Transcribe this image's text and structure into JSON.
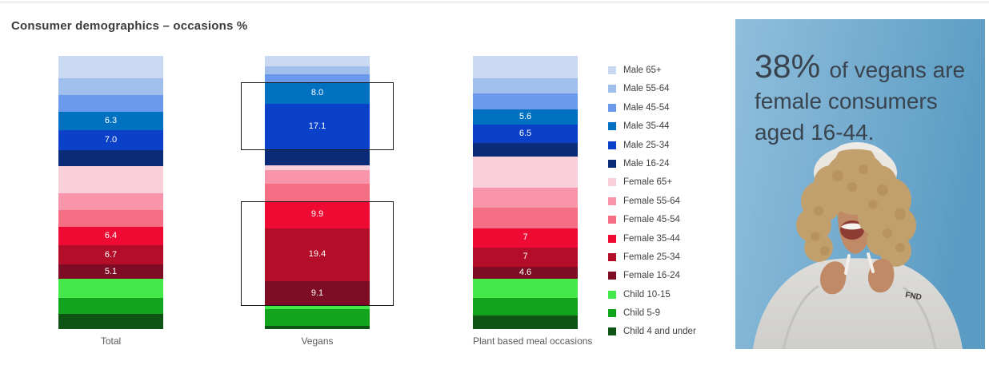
{
  "title": "Consumer demographics – occasions %",
  "chart_data": {
    "type": "bar",
    "stacked": true,
    "title": "Consumer demographics – occasions %",
    "unit": "%",
    "legend_position": "right",
    "grid": false,
    "categories": [
      "Male 65+",
      "Male 55-64",
      "Male 45-54",
      "Male 35-44",
      "Male 25-34",
      "Male 16-24",
      "Female 65+",
      "Female 55-64",
      "Female 45-54",
      "Female 35-44",
      "Female 25-34",
      "Female 16-24",
      "Child 10-15",
      "Child 5-9",
      "Child 4 and under"
    ],
    "colors": [
      "#C9D9F2",
      "#A0BFEC",
      "#6B9AEC",
      "#0070C0",
      "#0B41C8",
      "#0A2B78",
      "#F9CFDA",
      "#F995AB",
      "#F56E83",
      "#EE0A33",
      "#B30D29",
      "#7E0C24",
      "#45E84B",
      "#12A41C",
      "#0E5415"
    ],
    "bars": [
      {
        "name": "Total",
        "values": [
          7.9,
          5.9,
          5.9,
          6.3,
          7.0,
          5.6,
          9.6,
          5.9,
          5.9,
          6.4,
          6.7,
          5.1,
          6.5,
          5.6,
          5.4
        ],
        "value_labels": [
          null,
          null,
          null,
          "6.3",
          "7.0",
          null,
          null,
          null,
          null,
          "6.4",
          "6.7",
          "5.1",
          null,
          null,
          null
        ]
      },
      {
        "name": "Vegans",
        "values": [
          3.8,
          2.9,
          2.9,
          8.0,
          17.1,
          5.6,
          1.8,
          5.0,
          6.5,
          9.9,
          19.4,
          9.1,
          1.2,
          6.2,
          1.2
        ],
        "value_labels": [
          null,
          null,
          null,
          "8.0",
          "17.1",
          null,
          null,
          null,
          null,
          "9.9",
          "19.4",
          "9.1",
          null,
          null,
          null
        ]
      },
      {
        "name": "Plant based meal occasions",
        "values": [
          8.2,
          5.6,
          5.9,
          5.6,
          6.5,
          5.0,
          11.5,
          7.4,
          7.4,
          7.0,
          7.0,
          4.6,
          6.8,
          6.5,
          5.0
        ],
        "value_labels": [
          null,
          null,
          null,
          "5.6",
          "6.5",
          null,
          null,
          null,
          null,
          "7",
          "7",
          "4.6",
          null,
          null,
          null
        ]
      }
    ],
    "highlight_boxes": [
      {
        "bar": 1,
        "from_category": "Male 35-44",
        "to_category": "Male 25-34"
      },
      {
        "bar": 1,
        "from_category": "Female 35-44",
        "to_category": "Female 16-24"
      }
    ]
  },
  "infographic": {
    "stat": "38%",
    "text": "of vegans are female consumers aged 16-44.",
    "hoodie_text": "FND",
    "background_color": "#6FA9CC"
  }
}
